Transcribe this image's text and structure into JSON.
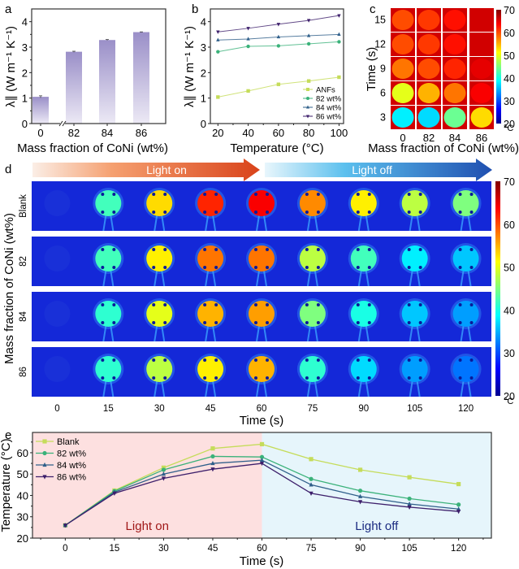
{
  "chart_data": [
    {
      "panel": "a",
      "type": "bar",
      "panel_label": "a",
      "categories": [
        "0",
        "82",
        "84",
        "86"
      ],
      "values": [
        1.05,
        2.82,
        3.28,
        3.59
      ],
      "errors": [
        0.04,
        0.02,
        0.02,
        0.01
      ],
      "xlabel": "Mass fraction of CoNi (wt%)",
      "ylabel": "λ∥ (W m⁻¹ K⁻¹)",
      "ylim": [
        0,
        4.5
      ],
      "yticks": [
        0,
        1,
        2,
        3,
        4
      ],
      "axis_break_between": [
        "0",
        "82"
      ],
      "bar_color": "#9a8fc8",
      "grid": false
    },
    {
      "panel": "b",
      "type": "line",
      "panel_label": "b",
      "x": [
        20,
        40,
        60,
        80,
        100
      ],
      "series": [
        {
          "name": "ANFs",
          "values": [
            1.04,
            1.28,
            1.54,
            1.67,
            1.82
          ],
          "color": "#c5dc5a",
          "marker": "square"
        },
        {
          "name": "82 wt%",
          "values": [
            2.82,
            3.03,
            3.05,
            3.13,
            3.21
          ],
          "color": "#3bb27a",
          "marker": "circle"
        },
        {
          "name": "84 wt%",
          "values": [
            3.28,
            3.32,
            3.4,
            3.45,
            3.5
          ],
          "color": "#2f5f8a",
          "marker": "triangle-up"
        },
        {
          "name": "86 wt%",
          "values": [
            3.6,
            3.74,
            3.9,
            4.05,
            4.24
          ],
          "color": "#3d1f6b",
          "marker": "triangle-down"
        }
      ],
      "xlabel": "Temperature (°C)",
      "ylabel": "λ∥ (W m⁻¹ K⁻¹)",
      "xlim": [
        15,
        103
      ],
      "ylim": [
        0,
        4.5
      ],
      "xticks": [
        20,
        40,
        60,
        80,
        100
      ],
      "yticks": [
        0,
        1,
        2,
        3,
        4
      ],
      "legend": "bottom-right",
      "grid": false
    },
    {
      "panel": "c",
      "type": "heatmap",
      "panel_label": "c",
      "columns": [
        "0",
        "82",
        "84",
        "86"
      ],
      "rows": [
        "15",
        "12",
        "9",
        "6",
        "3"
      ],
      "values_celsius": [
        [
          60,
          61,
          63,
          66
        ],
        [
          60,
          61,
          63,
          66
        ],
        [
          58,
          60,
          62,
          65
        ],
        [
          50,
          55,
          58,
          64
        ],
        [
          38,
          37,
          44,
          53
        ]
      ],
      "xlabel": "Mass fraction of CoNi (wt%)",
      "ylabel": "Time (s)",
      "colorbar": {
        "min": 20,
        "max": 70,
        "ticks": [
          20,
          30,
          40,
          50,
          60,
          70
        ],
        "unit": "°C"
      }
    },
    {
      "panel": "d",
      "type": "heatmap",
      "panel_label": "d",
      "arrows": [
        {
          "label": "Light on"
        },
        {
          "label": "Light off"
        }
      ],
      "rows": [
        "Blank",
        "82",
        "84",
        "86"
      ],
      "columns": [
        "0",
        "15",
        "30",
        "45",
        "60",
        "75",
        "90",
        "105",
        "120"
      ],
      "values_celsius": [
        [
          26,
          42,
          53,
          62,
          64,
          57,
          52,
          48,
          45
        ],
        [
          26,
          42,
          52,
          58,
          58,
          48,
          42,
          38,
          36
        ],
        [
          26,
          41,
          50,
          55,
          56,
          45,
          40,
          36,
          34
        ],
        [
          26,
          41,
          48,
          52,
          55,
          41,
          37,
          34,
          32
        ]
      ],
      "ylabel": "Mass fraction of CoNi (wt%)",
      "xlabel": "Time (s)",
      "colorbar": {
        "min": 20,
        "max": 70,
        "ticks": [
          20,
          30,
          40,
          50,
          60,
          70
        ],
        "unit": "°C"
      }
    },
    {
      "panel": "e",
      "type": "line",
      "panel_label": "e",
      "x": [
        0,
        15,
        30,
        45,
        60,
        75,
        90,
        105,
        120
      ],
      "series": [
        {
          "name": "Blank",
          "values": [
            26,
            42.3,
            53,
            62,
            64,
            57,
            52,
            48.5,
            45.3
          ],
          "color": "#c5dc5a",
          "marker": "square"
        },
        {
          "name": "82 wt%",
          "values": [
            26,
            42,
            52,
            58.3,
            58,
            47.7,
            42.2,
            38.5,
            35.7
          ],
          "color": "#3bb27a",
          "marker": "circle"
        },
        {
          "name": "84 wt%",
          "values": [
            26,
            41.5,
            50,
            55,
            56.5,
            45,
            39.5,
            36,
            33.6
          ],
          "color": "#2f5f8a",
          "marker": "triangle-up"
        },
        {
          "name": "86 wt%",
          "values": [
            26,
            41,
            48,
            52.3,
            55,
            41,
            37,
            34.5,
            32.5
          ],
          "color": "#3d1f6b",
          "marker": "triangle-down"
        }
      ],
      "regions": [
        {
          "label": "Light on",
          "from": -10,
          "to": 60,
          "color": "#fde0e0",
          "label_color": "#a01818"
        },
        {
          "label": "Light off",
          "from": 60,
          "to": 130,
          "color": "#e6f5fb",
          "label_color": "#1a2a80"
        }
      ],
      "xlabel": "Time (s)",
      "ylabel": "Temperature (°C)",
      "xlim": [
        -10,
        130
      ],
      "ylim": [
        20,
        69.5
      ],
      "xticks": [
        0,
        15,
        30,
        45,
        60,
        75,
        90,
        105,
        120
      ],
      "yticks": [
        20,
        30,
        40,
        50,
        60
      ],
      "legend": "top-left",
      "grid": false
    }
  ]
}
